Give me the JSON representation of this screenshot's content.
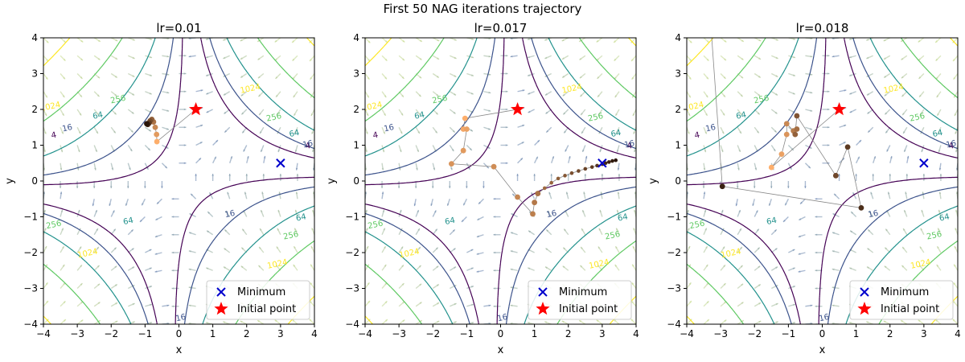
{
  "figure_title": "First 50 NAG iterations trajectory",
  "chart_data": [
    {
      "type": "scatter",
      "title": "lr=0.01",
      "xlabel": "x",
      "ylabel": "y",
      "xlim": [
        -4,
        4
      ],
      "ylim": [
        -4,
        4
      ],
      "xticks": [
        "−4",
        "−3",
        "−2",
        "−1",
        "0",
        "1",
        "2",
        "3",
        "4"
      ],
      "yticks": [
        "−4",
        "−3",
        "−2",
        "−1",
        "0",
        "1",
        "2",
        "3",
        "4"
      ],
      "contour_levels": [
        "4",
        "16",
        "64",
        "256",
        "1024"
      ],
      "minimum": {
        "label": "Minimum",
        "x": 3,
        "y": 0.5
      },
      "initial_point": {
        "label": "Initial point",
        "x": 0.5,
        "y": 2
      },
      "legend": {
        "position": "lower-right",
        "entries": [
          "Minimum",
          "Initial point"
        ]
      },
      "trajectory": [
        [
          0.5,
          2
        ],
        [
          -0.65,
          1.1
        ],
        [
          -0.66,
          1.3
        ],
        [
          -0.7,
          1.5
        ],
        [
          -0.75,
          1.65
        ],
        [
          -0.8,
          1.72
        ],
        [
          -0.85,
          1.68
        ],
        [
          -0.88,
          1.62
        ],
        [
          -0.92,
          1.58
        ],
        [
          -0.95,
          1.6
        ]
      ]
    },
    {
      "type": "scatter",
      "title": "lr=0.017",
      "xlabel": "x",
      "ylabel": "y",
      "xlim": [
        -4,
        4
      ],
      "ylim": [
        -4,
        4
      ],
      "xticks": [
        "−4",
        "−3",
        "−2",
        "−1",
        "0",
        "1",
        "2",
        "3",
        "4"
      ],
      "yticks": [
        "−4",
        "−3",
        "−2",
        "−1",
        "0",
        "1",
        "2",
        "3",
        "4"
      ],
      "contour_levels": [
        "4",
        "16",
        "64",
        "256",
        "1024"
      ],
      "minimum": {
        "label": "Minimum",
        "x": 3,
        "y": 0.5
      },
      "initial_point": {
        "label": "Initial point",
        "x": 0.5,
        "y": 2
      },
      "legend": {
        "position": "lower-right",
        "entries": [
          "Minimum",
          "Initial point"
        ]
      },
      "trajectory": [
        [
          0.5,
          2
        ],
        [
          -1.05,
          1.75
        ],
        [
          -1.1,
          1.45
        ],
        [
          -1.0,
          1.45
        ],
        [
          -1.1,
          0.85
        ],
        [
          -1.45,
          0.48
        ],
        [
          -0.2,
          0.4
        ],
        [
          0.5,
          -0.45
        ],
        [
          0.95,
          -0.92
        ],
        [
          1.0,
          -0.6
        ],
        [
          1.1,
          -0.35
        ],
        [
          1.3,
          -0.2
        ],
        [
          1.5,
          -0.05
        ],
        [
          1.7,
          0.07
        ],
        [
          1.9,
          0.15
        ],
        [
          2.1,
          0.22
        ],
        [
          2.3,
          0.28
        ],
        [
          2.5,
          0.34
        ],
        [
          2.7,
          0.39
        ],
        [
          2.85,
          0.43
        ],
        [
          3.0,
          0.47
        ],
        [
          3.1,
          0.5
        ],
        [
          3.2,
          0.53
        ],
        [
          3.3,
          0.56
        ],
        [
          3.4,
          0.58
        ]
      ]
    },
    {
      "type": "scatter",
      "title": "lr=0.018",
      "xlabel": "x",
      "ylabel": "y",
      "xlim": [
        -4,
        4
      ],
      "ylim": [
        -4,
        4
      ],
      "xticks": [
        "−4",
        "−3",
        "−2",
        "−1",
        "0",
        "1",
        "2",
        "3",
        "4"
      ],
      "yticks": [
        "−4",
        "−3",
        "−2",
        "−1",
        "0",
        "1",
        "2",
        "3",
        "4"
      ],
      "contour_levels": [
        "4",
        "16",
        "64",
        "256",
        "1024"
      ],
      "minimum": {
        "label": "Minimum",
        "x": 3,
        "y": 0.5
      },
      "initial_point": {
        "label": "Initial point",
        "x": 0.5,
        "y": 2
      },
      "legend": {
        "position": "lower-right",
        "entries": [
          "Minimum",
          "Initial point"
        ]
      },
      "trajectory": [
        [
          0.5,
          2
        ],
        [
          -1.5,
          0.38
        ],
        [
          -1.2,
          0.75
        ],
        [
          -1.05,
          1.3
        ],
        [
          -1.05,
          1.6
        ],
        [
          -0.85,
          1.4
        ],
        [
          -0.75,
          1.45
        ],
        [
          -0.8,
          1.3
        ],
        [
          -0.75,
          1.82
        ],
        [
          0.4,
          0.15
        ],
        [
          0.75,
          0.95
        ],
        [
          1.15,
          -0.75
        ],
        [
          -2.95,
          -0.15
        ],
        [
          -3.3,
          4.5
        ]
      ]
    }
  ]
}
